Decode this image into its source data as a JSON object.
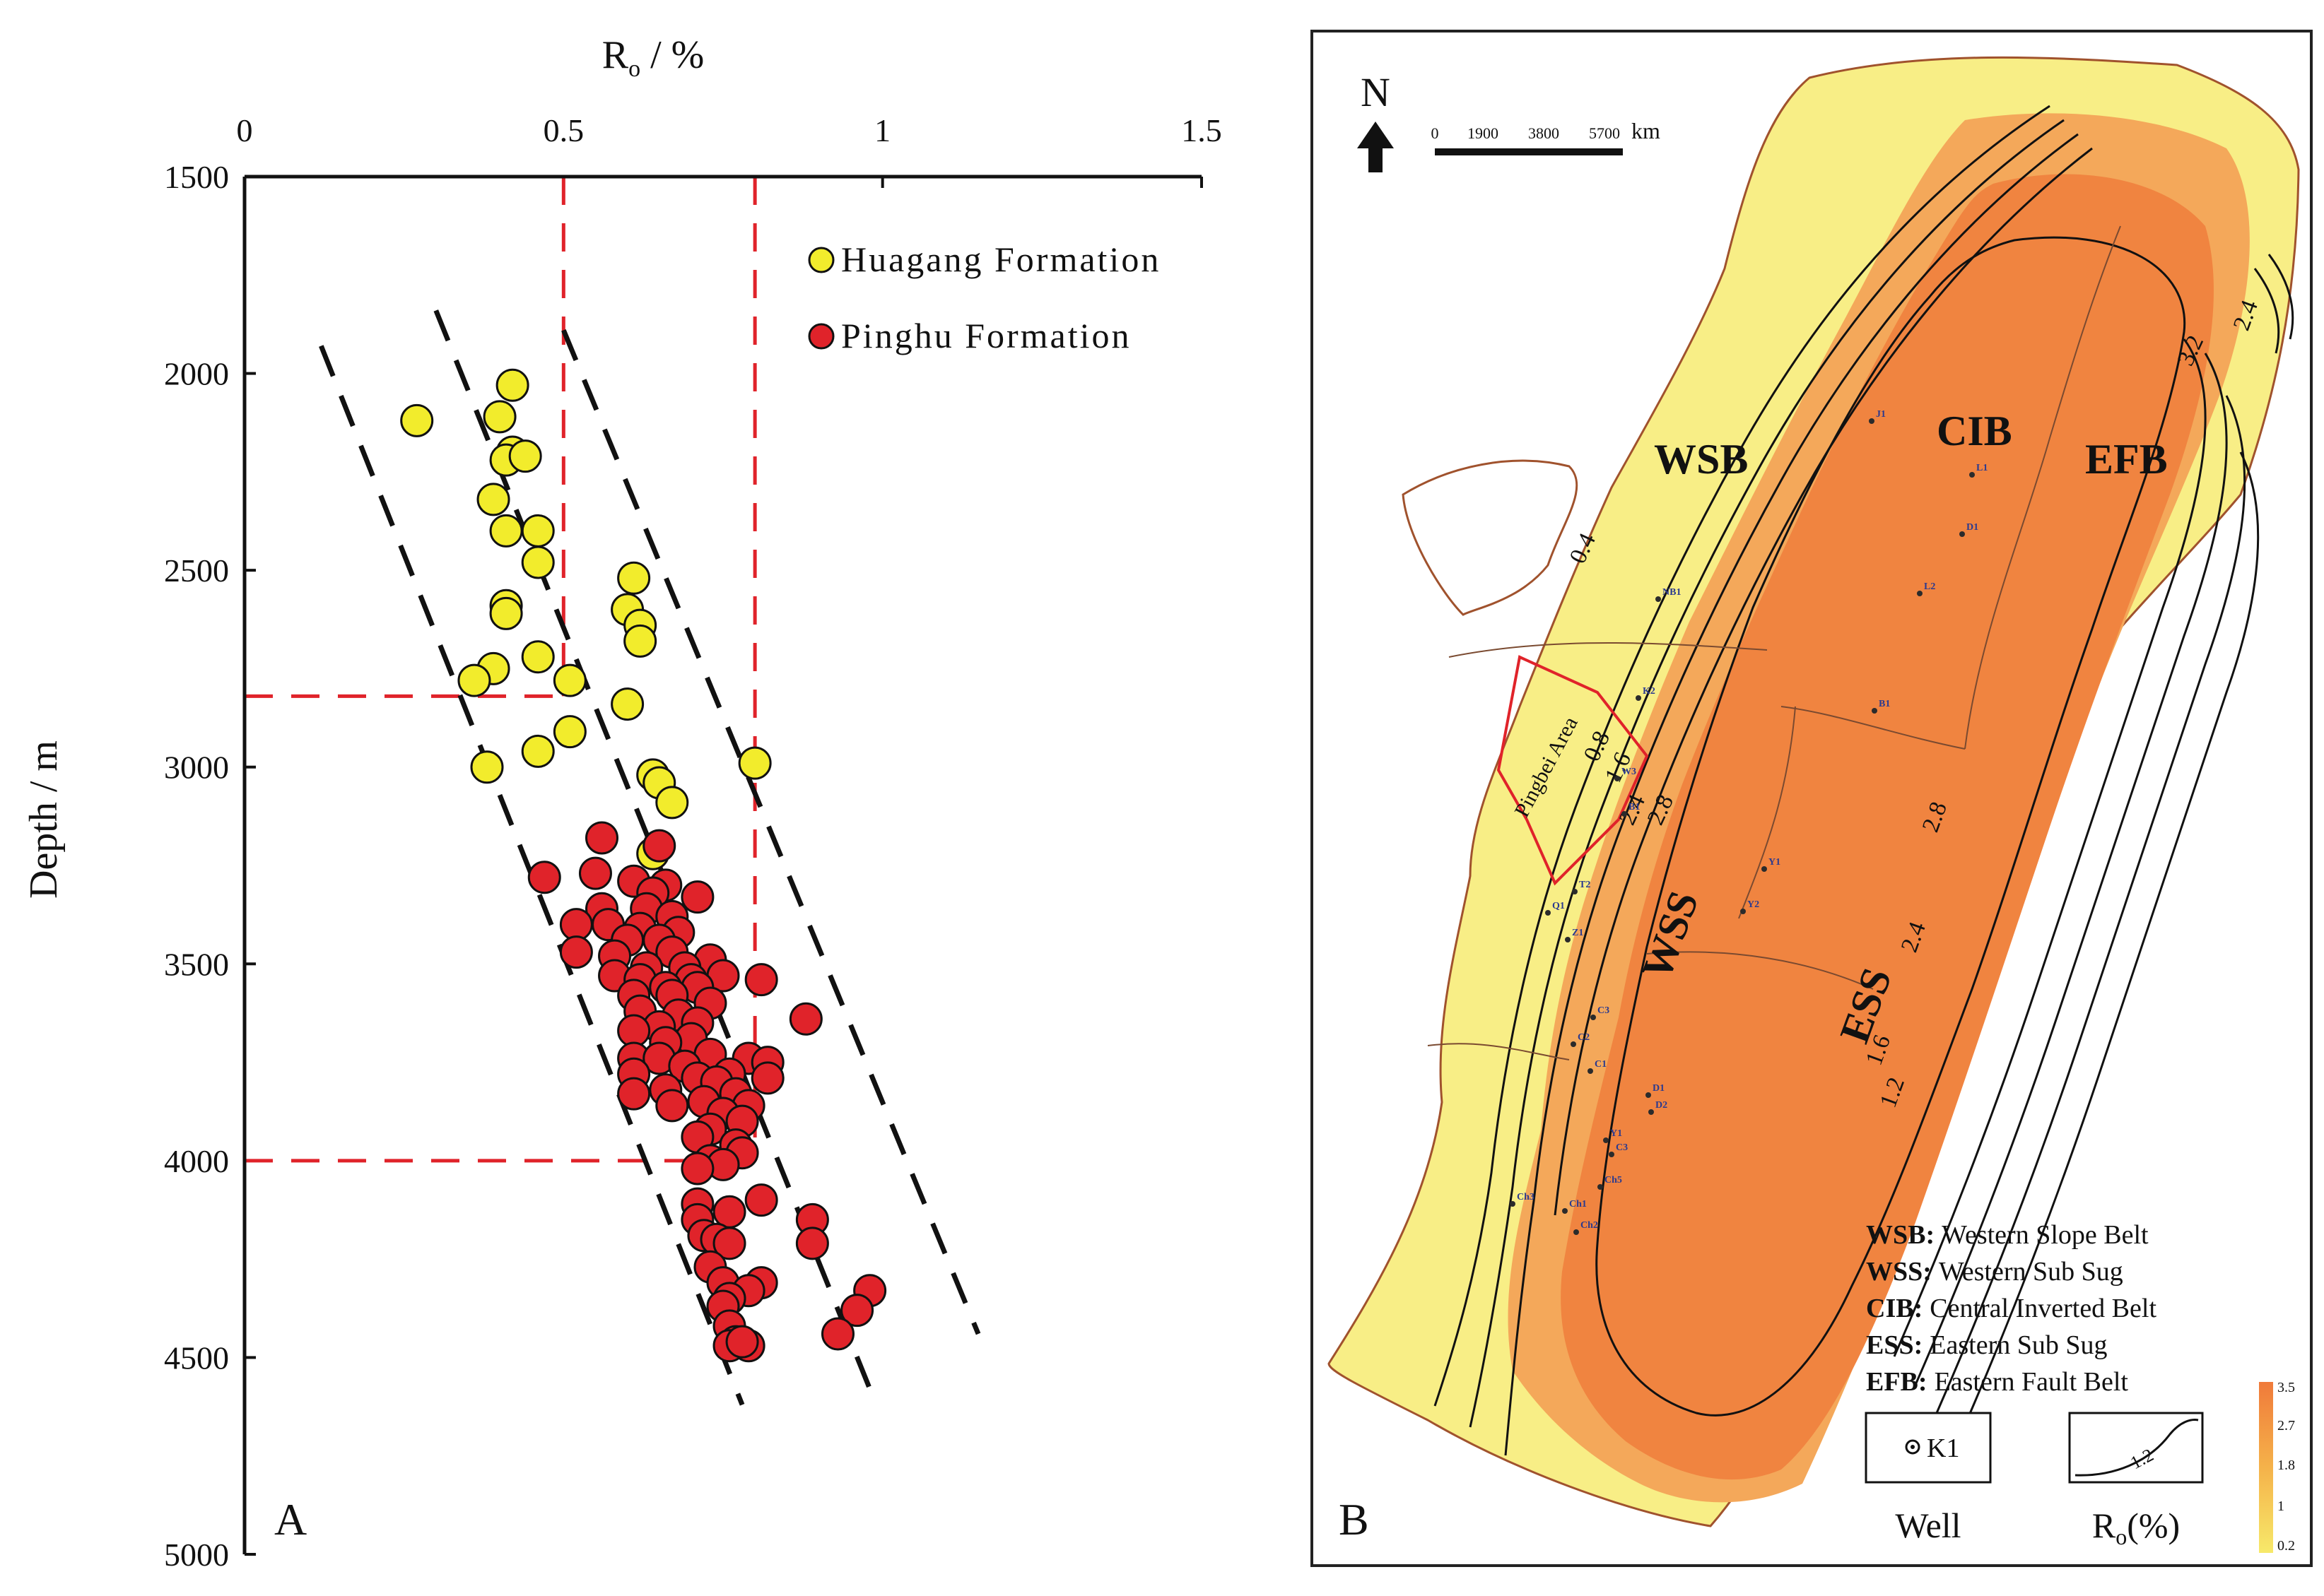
{
  "chart_data": [
    {
      "panel": "A",
      "type": "scatter",
      "xlabel_main": "R",
      "xlabel_sub": "o",
      "xlabel_tail": " / %",
      "ylabel": "Depth / m",
      "xlim": [
        0,
        1.5
      ],
      "ylim": [
        1500,
        5000
      ],
      "x_ticks": [
        "0",
        "0.5",
        "1",
        "1.5"
      ],
      "y_ticks": [
        "1500",
        "2000",
        "2500",
        "3000",
        "3500",
        "4000",
        "4500",
        "5000"
      ],
      "x_axis_position": "top",
      "y_axis_inverted": true,
      "legend_position": "top-right",
      "series": [
        {
          "name": "Huagang Formation",
          "color": "#f2ec2c",
          "points": [
            [
              0.42,
              2030
            ],
            [
              0.27,
              2120
            ],
            [
              0.4,
              2110
            ],
            [
              0.42,
              2200
            ],
            [
              0.41,
              2220
            ],
            [
              0.44,
              2210
            ],
            [
              0.39,
              2320
            ],
            [
              0.41,
              2400
            ],
            [
              0.46,
              2400
            ],
            [
              0.46,
              2480
            ],
            [
              0.61,
              2520
            ],
            [
              0.41,
              2590
            ],
            [
              0.41,
              2610
            ],
            [
              0.6,
              2600
            ],
            [
              0.62,
              2640
            ],
            [
              0.62,
              2680
            ],
            [
              0.46,
              2720
            ],
            [
              0.39,
              2750
            ],
            [
              0.36,
              2780
            ],
            [
              0.51,
              2780
            ],
            [
              0.6,
              2840
            ],
            [
              0.51,
              2910
            ],
            [
              0.46,
              2960
            ],
            [
              0.38,
              3000
            ],
            [
              0.64,
              3020
            ],
            [
              0.8,
              2990
            ],
            [
              0.65,
              3040
            ],
            [
              0.67,
              3090
            ],
            [
              0.64,
              3220
            ]
          ]
        },
        {
          "name": "Pinghu Formation",
          "color": "#e0232a",
          "points": [
            [
              0.56,
              3180
            ],
            [
              0.65,
              3200
            ],
            [
              0.47,
              3280
            ],
            [
              0.55,
              3270
            ],
            [
              0.61,
              3290
            ],
            [
              0.66,
              3300
            ],
            [
              0.64,
              3320
            ],
            [
              0.71,
              3330
            ],
            [
              0.56,
              3360
            ],
            [
              0.63,
              3360
            ],
            [
              0.67,
              3380
            ],
            [
              0.52,
              3400
            ],
            [
              0.57,
              3400
            ],
            [
              0.62,
              3410
            ],
            [
              0.68,
              3420
            ],
            [
              0.6,
              3440
            ],
            [
              0.65,
              3440
            ],
            [
              0.52,
              3470
            ],
            [
              0.58,
              3480
            ],
            [
              0.67,
              3470
            ],
            [
              0.73,
              3490
            ],
            [
              0.63,
              3510
            ],
            [
              0.69,
              3510
            ],
            [
              0.58,
              3530
            ],
            [
              0.62,
              3540
            ],
            [
              0.7,
              3540
            ],
            [
              0.75,
              3530
            ],
            [
              0.81,
              3540
            ],
            [
              0.66,
              3560
            ],
            [
              0.71,
              3560
            ],
            [
              0.61,
              3580
            ],
            [
              0.67,
              3580
            ],
            [
              0.73,
              3600
            ],
            [
              0.62,
              3620
            ],
            [
              0.68,
              3630
            ],
            [
              0.71,
              3650
            ],
            [
              0.88,
              3640
            ],
            [
              0.65,
              3660
            ],
            [
              0.61,
              3670
            ],
            [
              0.7,
              3690
            ],
            [
              0.66,
              3700
            ],
            [
              0.73,
              3730
            ],
            [
              0.61,
              3740
            ],
            [
              0.65,
              3740
            ],
            [
              0.79,
              3740
            ],
            [
              0.82,
              3750
            ],
            [
              0.69,
              3760
            ],
            [
              0.61,
              3780
            ],
            [
              0.71,
              3790
            ],
            [
              0.76,
              3780
            ],
            [
              0.82,
              3790
            ],
            [
              0.74,
              3800
            ],
            [
              0.66,
              3820
            ],
            [
              0.61,
              3830
            ],
            [
              0.77,
              3830
            ],
            [
              0.72,
              3850
            ],
            [
              0.67,
              3860
            ],
            [
              0.79,
              3860
            ],
            [
              0.75,
              3880
            ],
            [
              0.78,
              3900
            ],
            [
              0.73,
              3920
            ],
            [
              0.71,
              3940
            ],
            [
              0.77,
              3960
            ],
            [
              0.78,
              3980
            ],
            [
              0.73,
              4000
            ],
            [
              0.75,
              4010
            ],
            [
              0.71,
              4020
            ],
            [
              0.81,
              4100
            ],
            [
              0.71,
              4110
            ],
            [
              0.76,
              4130
            ],
            [
              0.71,
              4150
            ],
            [
              0.72,
              4190
            ],
            [
              0.89,
              4150
            ],
            [
              0.89,
              4210
            ],
            [
              0.74,
              4200
            ],
            [
              0.76,
              4210
            ],
            [
              0.73,
              4270
            ],
            [
              0.75,
              4310
            ],
            [
              0.81,
              4310
            ],
            [
              0.79,
              4330
            ],
            [
              0.76,
              4350
            ],
            [
              0.75,
              4370
            ],
            [
              0.98,
              4330
            ],
            [
              0.96,
              4380
            ],
            [
              0.76,
              4420
            ],
            [
              0.93,
              4440
            ],
            [
              0.77,
              4460
            ],
            [
              0.79,
              4470
            ],
            [
              0.76,
              4470
            ],
            [
              0.78,
              4460
            ]
          ]
        }
      ],
      "reference_lines": {
        "vertical_x": [
          0.5,
          0.8
        ],
        "horizontal_y": [
          2820,
          4000
        ],
        "color": "#e0232a",
        "style": "dashed"
      },
      "trend_bands": [
        {
          "from": [
            0.12,
            1930
          ],
          "to": [
            0.78,
            4620
          ]
        },
        {
          "from": [
            0.3,
            1840
          ],
          "to": [
            0.99,
            4620
          ]
        },
        {
          "from": [
            0.5,
            1890
          ],
          "to": [
            1.15,
            4440
          ]
        }
      ]
    },
    {
      "panel": "B",
      "type": "map",
      "north_label": "N",
      "scale": {
        "ticks": [
          "0",
          "1900",
          "3800",
          "5700"
        ],
        "unit": "km"
      },
      "regions": [
        "WSB",
        "CIB",
        "EFB",
        "WSS",
        "ESS"
      ],
      "area_label": "Pingbei Area",
      "contour_labels": [
        "0.4",
        "0.8",
        "1.6",
        "2.4",
        "2.8",
        "3.2",
        "2.8",
        "2.4",
        "1.6",
        "1.2",
        "2.4"
      ],
      "wells": [
        "J1",
        "L1",
        "D1",
        "L2",
        "NB1",
        "K2",
        "B1",
        "W3",
        "B1",
        "Y1",
        "Y2",
        "Q1",
        "T2",
        "Z1",
        "C3",
        "C2",
        "C1",
        "D1",
        "D2",
        "Y1",
        "C3",
        "Ch5",
        "Ch3",
        "Ch1",
        "Ch2"
      ],
      "key": [
        {
          "abbr": "WSB:",
          "text": "Western Slope Belt"
        },
        {
          "abbr": "WSS:",
          "text": "Western Sub Sug"
        },
        {
          "abbr": "CIB:",
          "text": "Central Inverted Belt"
        },
        {
          "abbr": "ESS:",
          "text": "Eastern Sub Sug"
        },
        {
          "abbr": "EFB:",
          "text": "Eastern Fault Belt"
        }
      ],
      "well_symbol_label": "K1",
      "well_caption": "Well",
      "ro_caption_main": "R",
      "ro_caption_sub": "o",
      "ro_caption_tail": "(%)",
      "ro_symbol_label": "1.2",
      "colorbar": {
        "ticks": [
          "3.5",
          "2.7",
          "1.8",
          "1",
          "0.2"
        ],
        "colors": [
          "#f07a3a",
          "#f5b24a",
          "#f7e96a"
        ]
      },
      "colors": {
        "basin_deep": "#f08440",
        "basin_mid": "#f4a85a",
        "basin_shallow": "#f8ee86",
        "outline": "#a0522d"
      }
    }
  ]
}
